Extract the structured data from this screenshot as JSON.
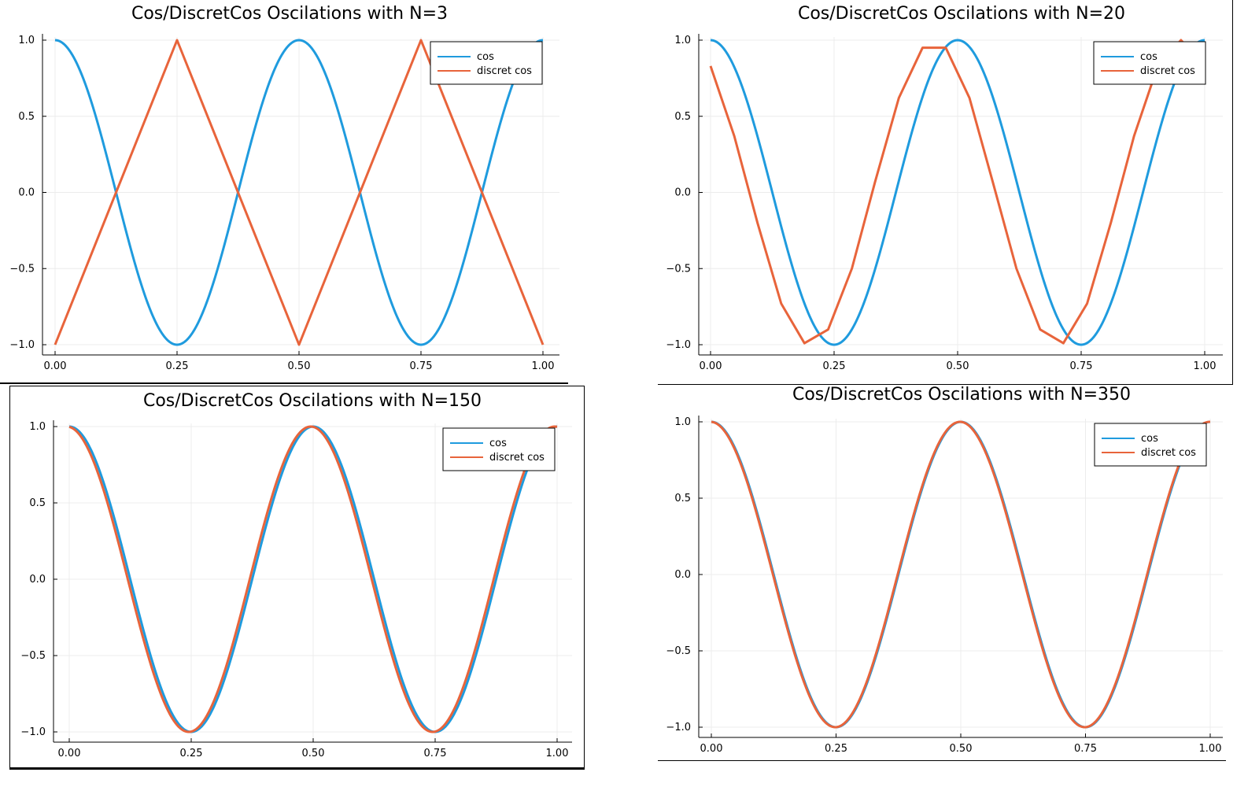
{
  "chart_data": [
    {
      "type": "line",
      "title": "Cos/DiscretCos Oscilations with N=3",
      "N": 3,
      "xlim": [
        0,
        1
      ],
      "ylim": [
        -1,
        1
      ],
      "xticks": [
        0,
        0.25,
        0.5,
        0.75,
        1
      ],
      "xtick_labels": [
        "0.00",
        "0.25",
        "0.50",
        "0.75",
        "1.00"
      ],
      "yticks": [
        -1,
        -0.5,
        0,
        0.5,
        1
      ],
      "ytick_labels": [
        "−1.0",
        "−0.5",
        "0.0",
        "0.5",
        "1.0"
      ],
      "grid": true,
      "legend_position": "top-right",
      "series": [
        {
          "name": "cos",
          "color": "#1f9bde",
          "function": "cos(4*pi*x)"
        },
        {
          "name": "discret cos",
          "color": "#e8643b",
          "x": [
            0,
            0.25,
            0.5,
            0.75,
            1
          ],
          "y": [
            -1,
            1,
            -1,
            1,
            -1
          ]
        }
      ]
    },
    {
      "type": "line",
      "title": "Cos/DiscretCos Oscilations with N=20",
      "N": 20,
      "xlim": [
        0,
        1
      ],
      "ylim": [
        -1,
        1
      ],
      "xticks": [
        0,
        0.25,
        0.5,
        0.75,
        1
      ],
      "xtick_labels": [
        "0.00",
        "0.25",
        "0.50",
        "0.75",
        "1.00"
      ],
      "yticks": [
        -1,
        -0.5,
        0,
        0.5,
        1
      ],
      "ytick_labels": [
        "−1.0",
        "−0.5",
        "0.0",
        "0.5",
        "1.0"
      ],
      "grid": true,
      "legend_position": "top-right",
      "series": [
        {
          "name": "cos",
          "color": "#1f9bde",
          "function": "cos(4*pi*x)"
        },
        {
          "name": "discret cos",
          "color": "#e8643b",
          "x": [
            0,
            0.048,
            0.095,
            0.143,
            0.19,
            0.238,
            0.286,
            0.333,
            0.381,
            0.429,
            0.476,
            0.524,
            0.571,
            0.619,
            0.667,
            0.714,
            0.762,
            0.81,
            0.857,
            0.905,
            0.952,
            1
          ],
          "y": [
            0.83,
            0.37,
            -0.2,
            -0.73,
            -0.99,
            -0.9,
            -0.5,
            0.07,
            0.62,
            0.95,
            0.95,
            0.62,
            0.07,
            -0.5,
            -0.9,
            -0.99,
            -0.73,
            -0.2,
            0.37,
            0.83,
            1,
            0.83
          ]
        }
      ]
    },
    {
      "type": "line",
      "title": "Cos/DiscretCos Oscilations with N=150",
      "N": 150,
      "xlim": [
        0,
        1
      ],
      "ylim": [
        -1,
        1
      ],
      "xticks": [
        0,
        0.25,
        0.5,
        0.75,
        1
      ],
      "xtick_labels": [
        "0.00",
        "0.25",
        "0.50",
        "0.75",
        "1.00"
      ],
      "yticks": [
        -1,
        -0.5,
        0,
        0.5,
        1
      ],
      "ytick_labels": [
        "−1.0",
        "−0.5",
        "0.0",
        "0.5",
        "1.0"
      ],
      "grid": true,
      "legend_position": "top-right",
      "series": [
        {
          "name": "cos",
          "color": "#1f9bde",
          "function": "cos(4*pi*x)"
        },
        {
          "name": "discret cos",
          "color": "#e8643b",
          "function": "cos(4*pi*(x+0.005))"
        }
      ]
    },
    {
      "type": "line",
      "title": "Cos/DiscretCos Oscilations with N=350",
      "N": 350,
      "xlim": [
        0,
        1
      ],
      "ylim": [
        -1,
        1
      ],
      "xticks": [
        0,
        0.25,
        0.5,
        0.75,
        1
      ],
      "xtick_labels": [
        "0.00",
        "0.25",
        "0.50",
        "0.75",
        "1.00"
      ],
      "yticks": [
        -1,
        -0.5,
        0,
        0.5,
        1
      ],
      "ytick_labels": [
        "−1.0",
        "−0.5",
        "0.0",
        "0.5",
        "1.0"
      ],
      "grid": true,
      "legend_position": "top-right",
      "series": [
        {
          "name": "cos",
          "color": "#1f9bde",
          "function": "cos(4*pi*x)"
        },
        {
          "name": "discret cos",
          "color": "#e8643b",
          "function": "cos(4*pi*(x+0.0015))"
        }
      ]
    }
  ]
}
